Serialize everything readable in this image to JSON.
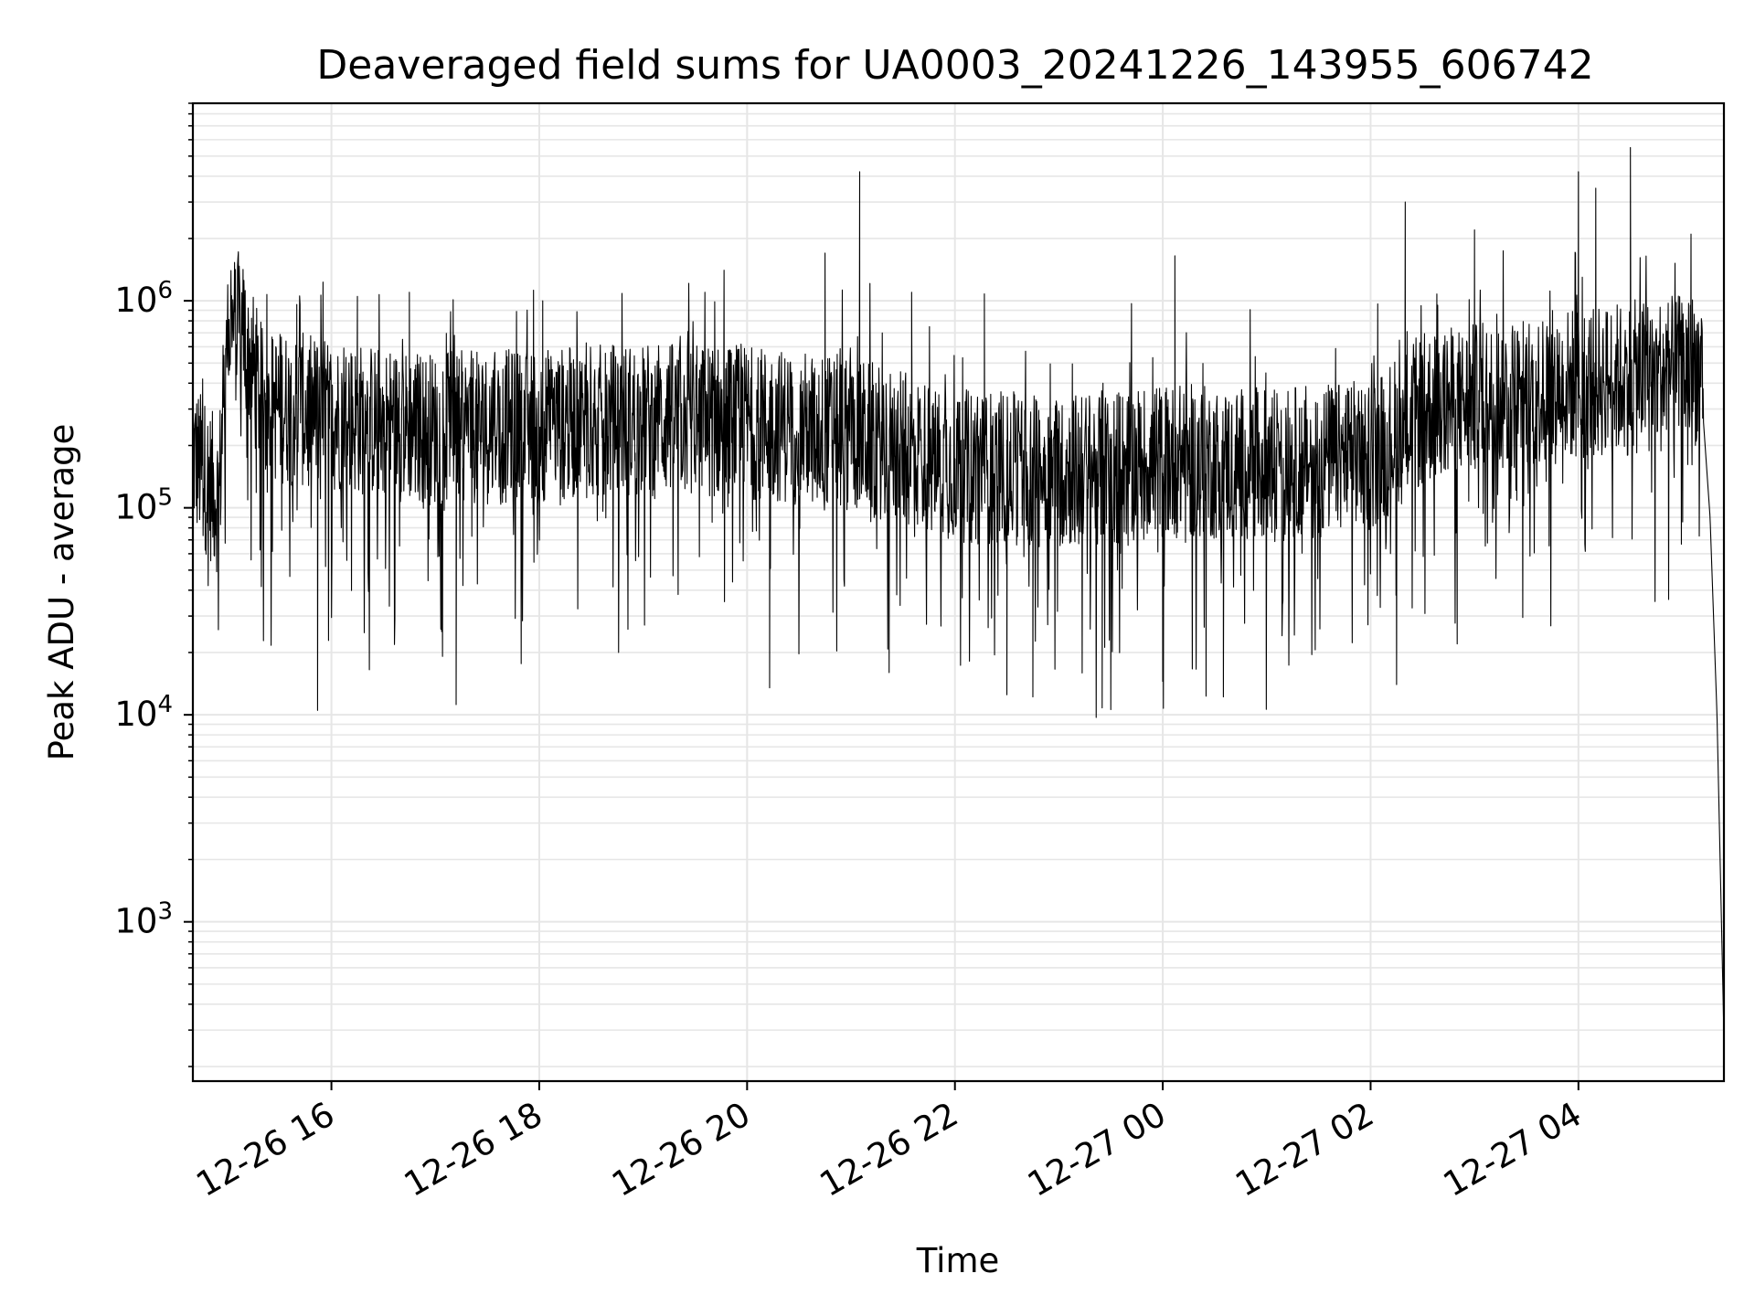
{
  "chart_data": {
    "type": "line",
    "title": "Deaveraged field sums for UA0003_20241226_143955_606742",
    "xlabel": "Time",
    "ylabel": "Peak ADU - average",
    "yscale": "log",
    "ylim": [
      170,
      9000000
    ],
    "xlim": [
      "2024-12-26 14:40",
      "2024-12-27 05:24"
    ],
    "grid": true,
    "line_color": "#000000",
    "grid_color": "#e6e6e6",
    "x_ticks": [
      {
        "t": "2024-12-26 16:00",
        "label": "12-26 16"
      },
      {
        "t": "2024-12-26 18:00",
        "label": "12-26 18"
      },
      {
        "t": "2024-12-26 20:00",
        "label": "12-26 20"
      },
      {
        "t": "2024-12-26 22:00",
        "label": "12-26 22"
      },
      {
        "t": "2024-12-27 00:00",
        "label": "12-27 00"
      },
      {
        "t": "2024-12-27 02:00",
        "label": "12-27 02"
      },
      {
        "t": "2024-12-27 04:00",
        "label": "12-27 04"
      }
    ],
    "y_ticks": [
      {
        "value": 1000,
        "base": "10",
        "exp": "3"
      },
      {
        "value": 10000,
        "base": "10",
        "exp": "4"
      },
      {
        "value": 100000,
        "base": "10",
        "exp": "5"
      },
      {
        "value": 1000000,
        "base": "10",
        "exp": "6"
      }
    ],
    "baseline": [
      {
        "t": "2024-12-26 14:40",
        "y": 180000
      },
      {
        "t": "2024-12-26 14:55",
        "y": 110000
      },
      {
        "t": "2024-12-26 15:00",
        "y": 700000
      },
      {
        "t": "2024-12-26 15:08",
        "y": 750000
      },
      {
        "t": "2024-12-26 15:20",
        "y": 320000
      },
      {
        "t": "2024-12-26 16:00",
        "y": 280000
      },
      {
        "t": "2024-12-26 17:00",
        "y": 240000
      },
      {
        "t": "2024-12-26 18:00",
        "y": 250000
      },
      {
        "t": "2024-12-26 19:00",
        "y": 270000
      },
      {
        "t": "2024-12-26 20:00",
        "y": 260000
      },
      {
        "t": "2024-12-26 21:00",
        "y": 230000
      },
      {
        "t": "2024-12-26 22:00",
        "y": 160000
      },
      {
        "t": "2024-12-26 23:00",
        "y": 150000
      },
      {
        "t": "2024-12-27 00:00",
        "y": 170000
      },
      {
        "t": "2024-12-27 01:00",
        "y": 160000
      },
      {
        "t": "2024-12-27 02:00",
        "y": 180000
      },
      {
        "t": "2024-12-27 02:30",
        "y": 300000
      },
      {
        "t": "2024-12-27 03:00",
        "y": 330000
      },
      {
        "t": "2024-12-27 04:00",
        "y": 400000
      },
      {
        "t": "2024-12-27 05:00",
        "y": 450000
      },
      {
        "t": "2024-12-27 05:10",
        "y": 480000
      },
      {
        "t": "2024-12-27 05:16",
        "y": 90000
      },
      {
        "t": "2024-12-27 05:20",
        "y": 10000
      },
      {
        "t": "2024-12-27 05:24",
        "y": 280
      }
    ],
    "spikes": [
      {
        "t": "2024-12-26 15:02",
        "y": 1400000
      },
      {
        "t": "2024-12-26 15:40",
        "y": 960000
      },
      {
        "t": "2024-12-26 16:15",
        "y": 1050000
      },
      {
        "t": "2024-12-26 16:45",
        "y": 1100000
      },
      {
        "t": "2024-12-26 18:02",
        "y": 1000000
      },
      {
        "t": "2024-12-26 20:45",
        "y": 1700000
      },
      {
        "t": "2024-12-26 21:05",
        "y": 4200000
      },
      {
        "t": "2024-12-26 21:35",
        "y": 1100000
      },
      {
        "t": "2024-12-26 22:17",
        "y": 1080000
      },
      {
        "t": "2024-12-27 00:07",
        "y": 1650000
      },
      {
        "t": "2024-12-27 02:20",
        "y": 3000000
      },
      {
        "t": "2024-12-27 03:00",
        "y": 2200000
      },
      {
        "t": "2024-12-27 04:00",
        "y": 4200000
      },
      {
        "t": "2024-12-27 04:10",
        "y": 3500000
      },
      {
        "t": "2024-12-27 04:30",
        "y": 5500000
      },
      {
        "t": "2024-12-27 05:05",
        "y": 2100000
      }
    ],
    "dips": [
      {
        "t": "2024-12-26 15:52",
        "y": 10500
      },
      {
        "t": "2024-12-26 17:12",
        "y": 11200
      },
      {
        "t": "2024-12-26 20:13",
        "y": 13500
      },
      {
        "t": "2024-12-26 21:22",
        "y": 16000
      },
      {
        "t": "2024-12-26 22:30",
        "y": 12500
      },
      {
        "t": "2024-12-26 22:45",
        "y": 12200
      },
      {
        "t": "2024-12-26 23:25",
        "y": 10800
      },
      {
        "t": "2024-12-26 23:30",
        "y": 10600
      },
      {
        "t": "2024-12-27 00:00",
        "y": 14500
      },
      {
        "t": "2024-12-27 00:25",
        "y": 12300
      },
      {
        "t": "2024-12-27 00:35",
        "y": 12200
      },
      {
        "t": "2024-12-27 02:15",
        "y": 14000
      },
      {
        "t": "2024-12-27 02:50",
        "y": 22000
      }
    ]
  }
}
